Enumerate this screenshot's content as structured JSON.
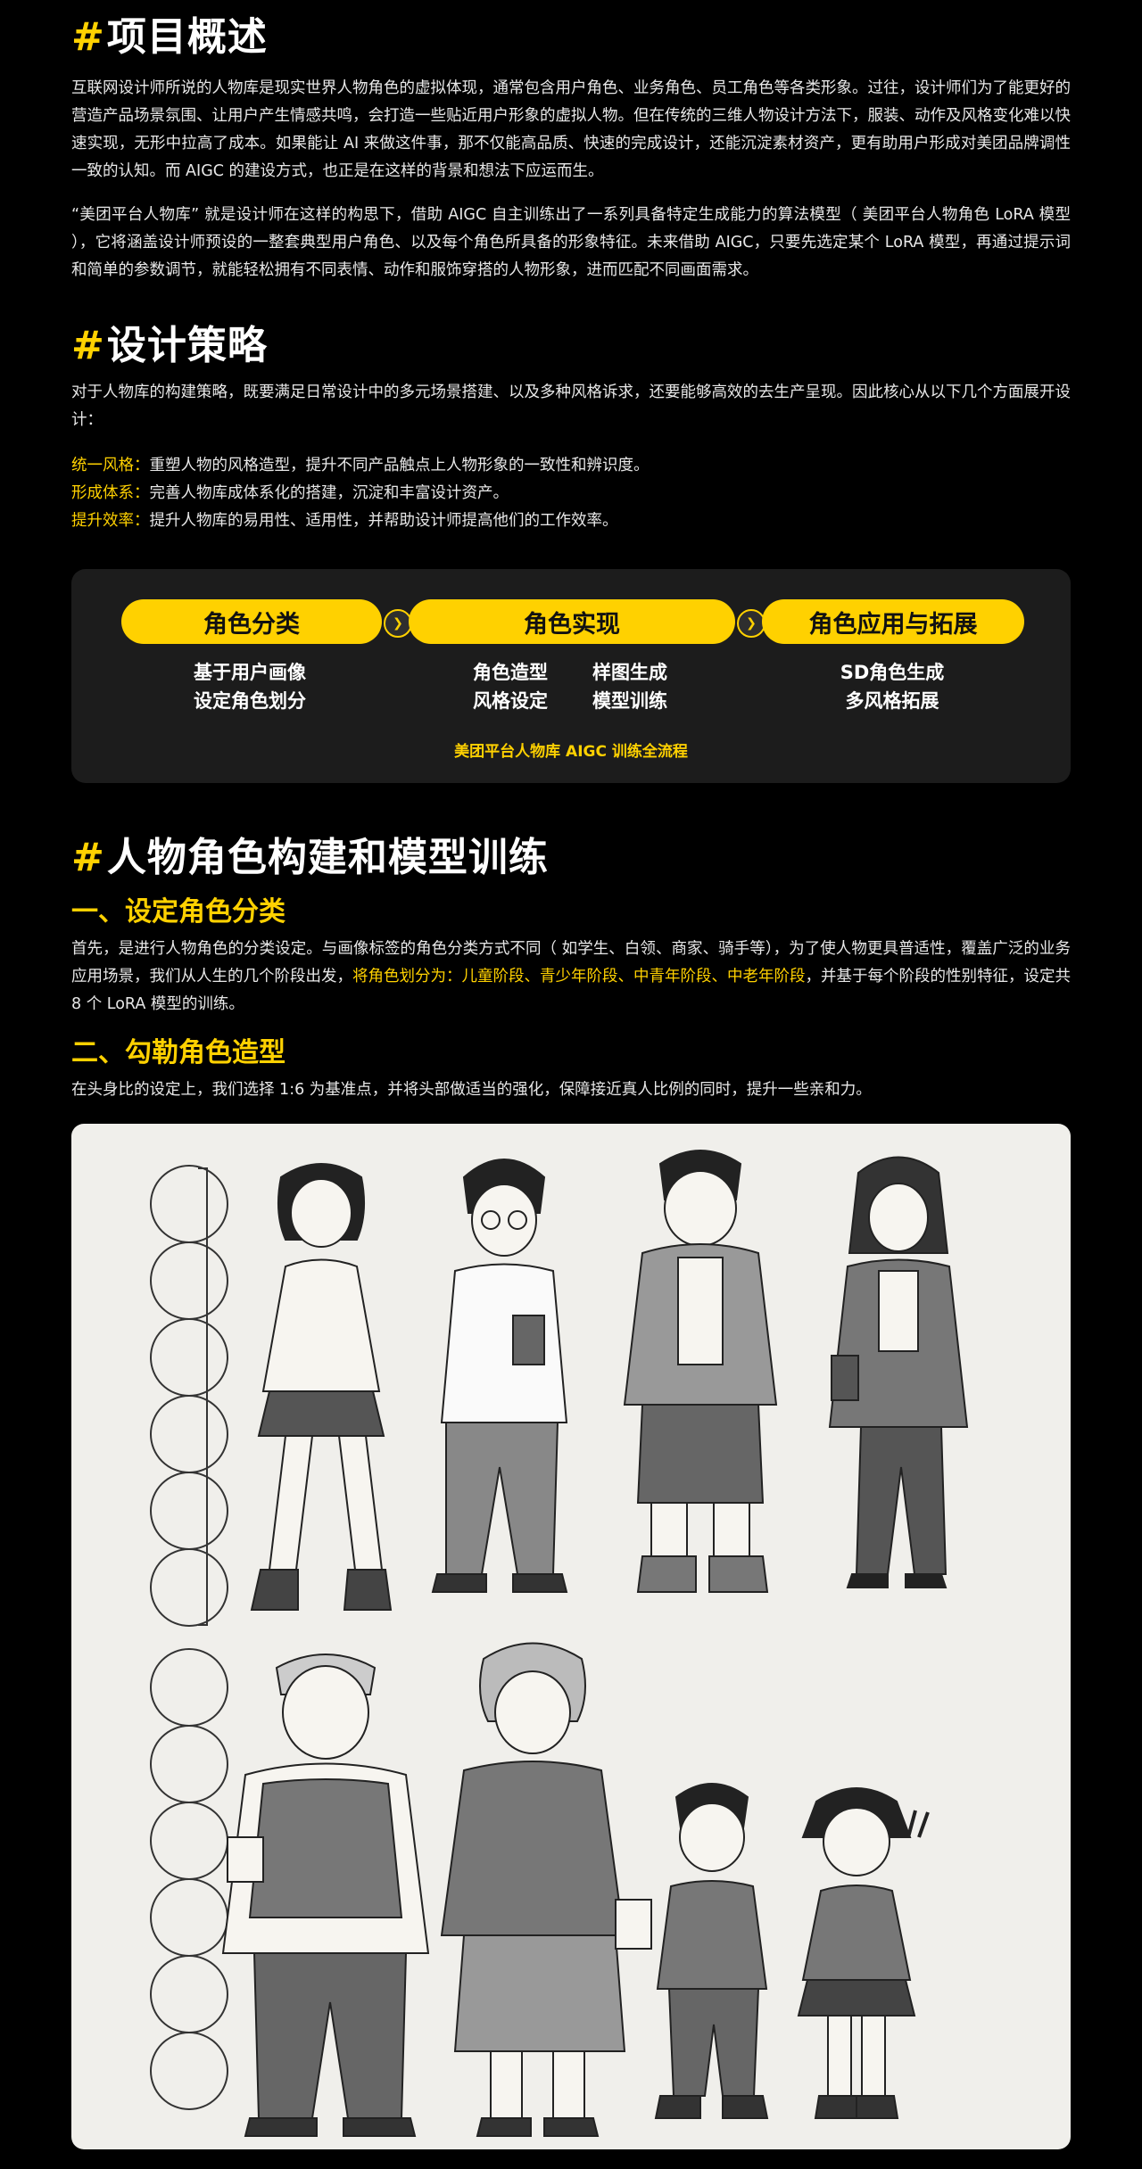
{
  "section1": {
    "hash": "#",
    "title": "项目概述",
    "para1": "互联网设计师所说的人物库是现实世界人物角色的虚拟体现，通常包含用户角色、业务角色、员工角色等各类形象。过往，设计师们为了能更好的营造产品场景氛围、让用户产生情感共鸣，会打造一些贴近用户形象的虚拟人物。但在传统的三维人物设计方法下，服装、动作及风格变化难以快速实现，无形中拉高了成本。如果能让 AI 来做这件事，那不仅能高品质、快速的完成设计，还能沉淀素材资产，更有助用户形成对美团品牌调性一致的认知。而 AIGC 的建设方式，也正是在这样的背景和想法下应运而生。",
    "para2": "“美团平台人物库” 就是设计师在这样的构思下，借助 AIGC 自主训练出了一系列具备特定生成能力的算法模型（ 美团平台人物角色 LoRA 模型 ），它将涵盖设计师预设的一整套典型用户角色、以及每个角色所具备的形象特征。未来借助 AIGC，只要先选定某个 LoRA 模型，再通过提示词和简单的参数调节，就能轻松拥有不同表情、动作和服饰穿搭的人物形象，进而匹配不同画面需求。"
  },
  "section2": {
    "hash": "#",
    "title": "设计策略",
    "para": "对于人物库的构建策略，既要满足日常设计中的多元场景搭建、以及多种风格诉求，还要能够高效的去生产呈现。因此核心从以下几个方面展开设计：",
    "bullets": [
      {
        "key": "统一风格：",
        "text": "重塑人物的风格造型，提升不同产品触点上人物形象的一致性和辨识度。"
      },
      {
        "key": "形成体系：",
        "text": "完善人物库成体系化的搭建，沉淀和丰富设计资产。"
      },
      {
        "key": "提升效率：",
        "text": "提升人物库的易用性、适用性，并帮助设计师提高他们的工作效率。"
      }
    ]
  },
  "flow": {
    "steps": [
      "角色分类",
      "角色实现",
      "角色应用与拓展"
    ],
    "col1": [
      "基于用户画像",
      "设定角色划分"
    ],
    "col2a": [
      "角色造型",
      "风格设定"
    ],
    "col2b": [
      "样图生成",
      "模型训练"
    ],
    "col3": [
      "SD角色生成",
      "多风格拓展"
    ],
    "caption": "美团平台人物库 AIGC 训练全流程"
  },
  "section3": {
    "hash": "#",
    "title": "人物角色构建和模型训练",
    "sub1": "一、设定角色分类",
    "para1_a": "首先，是进行人物角色的分类设定。与画像标签的角色分类方式不同（ 如学生、白领、商家、骑手等），为了使人物更具普适性，覆盖广泛的业务应用场景，我们从人生的几个阶段出发，",
    "para1_hl": "将角色划分为：儿童阶段、青少年阶段、中青年阶段、中老年阶段",
    "para1_b": "，并基于每个阶段的性别特征，设定共 8 个 LoRA 模型的训练。",
    "sub2": "二、勾勒角色造型",
    "para2": "在头身比的设定上，我们选择 1:6 为基准点，并将头部做适当的强化，保障接近真人比例的同时，提升一些亲和力。"
  },
  "colors": {
    "accent": "#ffd100",
    "background": "#000000",
    "panel": "#1c1c1c",
    "illustration_bg": "#f0efeb"
  }
}
